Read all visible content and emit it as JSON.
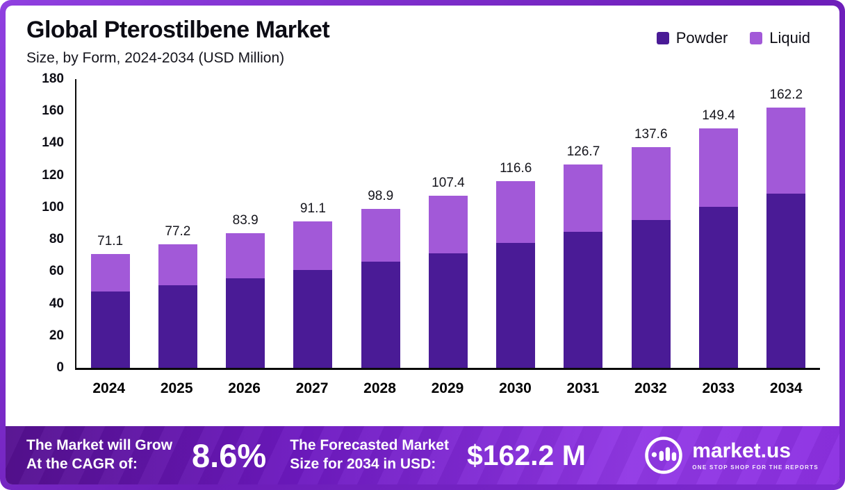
{
  "header": {
    "title": "Global Pterostilbene Market",
    "subtitle": "Size, by Form, 2024-2034 (USD Million)"
  },
  "chart_data": {
    "type": "bar",
    "stacked": true,
    "title": "Global Pterostilbene Market Size, by Form, 2024-2034 (USD Million)",
    "categories": [
      "2024",
      "2025",
      "2026",
      "2027",
      "2028",
      "2029",
      "2030",
      "2031",
      "2032",
      "2033",
      "2034"
    ],
    "series": [
      {
        "name": "Powder",
        "color": "#4a1b96",
        "values": [
          47.5,
          51.7,
          56.0,
          60.8,
          66.0,
          71.5,
          77.8,
          84.6,
          92.0,
          100.3,
          108.8
        ]
      },
      {
        "name": "Liquid",
        "color": "#a259d8",
        "values": [
          23.6,
          25.5,
          27.9,
          30.3,
          32.9,
          35.9,
          38.8,
          42.1,
          45.6,
          49.1,
          53.4
        ]
      }
    ],
    "totals": [
      71.1,
      77.2,
      83.9,
      91.1,
      98.9,
      107.4,
      116.6,
      126.7,
      137.6,
      149.4,
      162.2
    ],
    "xlabel": "",
    "ylabel": "USD Million",
    "ylim": [
      0,
      180
    ],
    "y_ticks": [
      0,
      20,
      40,
      60,
      80,
      100,
      120,
      140,
      160,
      180
    ],
    "grid": false,
    "legend_position": "top-right"
  },
  "footer": {
    "cagr_label_line1": "The Market will Grow",
    "cagr_label_line2": "At the CAGR of:",
    "cagr_value": "8.6%",
    "forecast_label_line1": "The Forecasted Market",
    "forecast_label_line2": "Size for 2034 in USD:",
    "forecast_value": "$162.2 M",
    "brand": "market.us",
    "brand_tagline": "ONE STOP SHOP FOR THE REPORTS"
  },
  "colors": {
    "powder": "#4a1b96",
    "liquid": "#a259d8",
    "frame_purple": "#7d2ad0",
    "footer_gradient_start": "#54108f",
    "footer_gradient_end": "#9138e5"
  }
}
